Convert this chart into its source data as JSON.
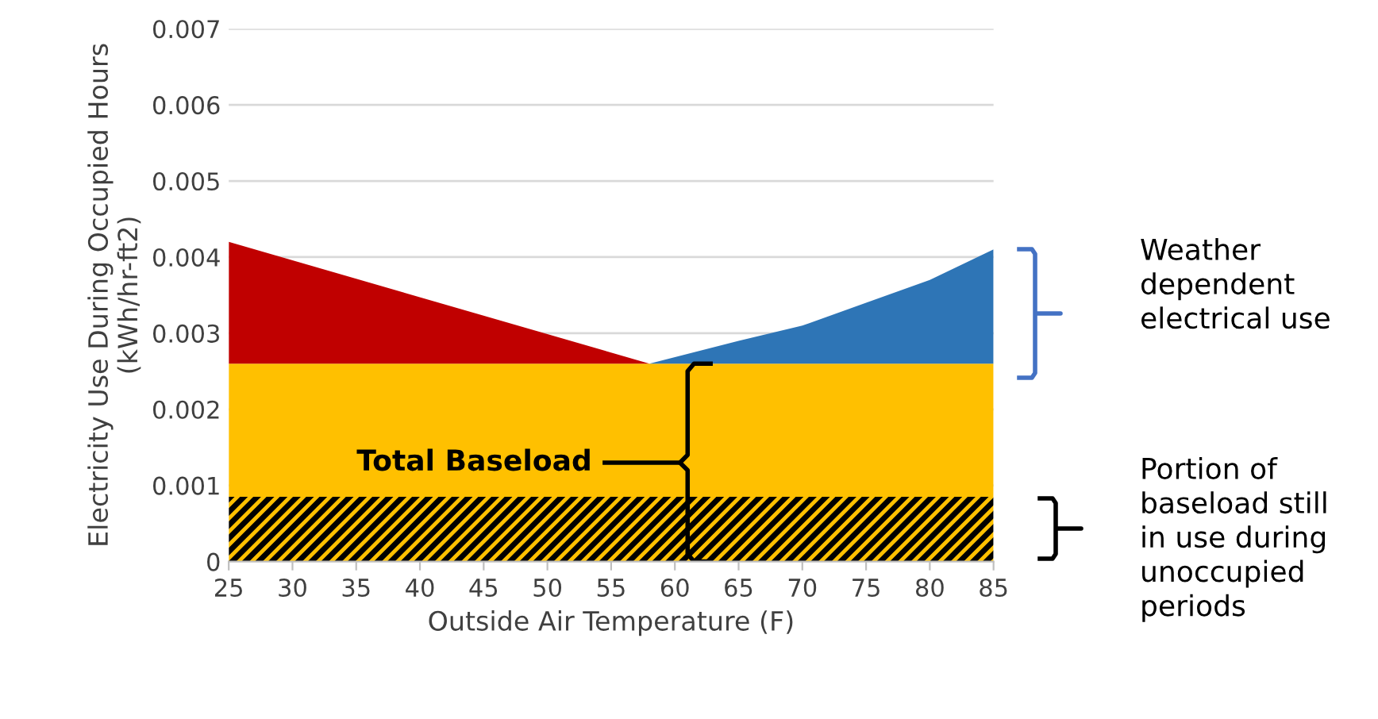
{
  "chart_data": {
    "type": "area",
    "stacked": true,
    "xlabel": "Outside Air Temperature (F)",
    "ylabel": "Electricity Use During Occupied Hours\n(kWh/hr-ft2)",
    "x": [
      25,
      58,
      65,
      70,
      75,
      80,
      85
    ],
    "series": [
      {
        "color": "#ffc000",
        "values": [
          0.00085,
          0.00085,
          0.00085,
          0.00085,
          0.00085,
          0.00085,
          0.00085
        ]
      },
      {
        "color": "#ffc000",
        "values": [
          0.00175,
          0.00175,
          0.00175,
          0.00175,
          0.00175,
          0.00175,
          0.00175
        ]
      },
      {
        "color": "#c00000",
        "values": [
          0.0016,
          0,
          null,
          null,
          null,
          null,
          null
        ]
      },
      {
        "color": "#2e75b6",
        "values": [
          null,
          0,
          0.0003,
          0.0005,
          0.0008,
          0.0011,
          0.0015
        ]
      }
    ],
    "xlim": [
      25,
      85
    ],
    "xticks": [
      25,
      30,
      35,
      40,
      45,
      50,
      55,
      60,
      65,
      70,
      75,
      80,
      85
    ],
    "ylim": [
      0,
      0.007
    ],
    "yticks": [
      0,
      0.001,
      0.002,
      0.003,
      0.004,
      0.005,
      0.006,
      0.007
    ],
    "grid": "y",
    "legend": false,
    "annotations": [
      "Total Baseload",
      "Weather\ndependent\nelectrical use",
      "Portion of\nbaseload still\nin use during\nunoccupied\nperiods"
    ]
  }
}
